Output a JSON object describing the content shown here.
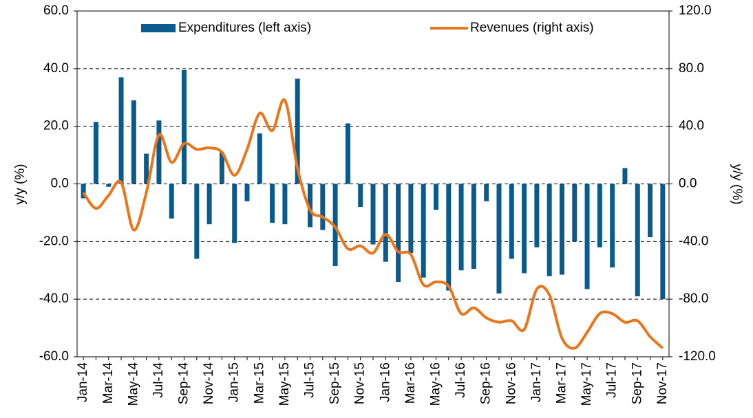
{
  "chart_data": {
    "type": "bar-line",
    "categories": [
      "Jan-14",
      null,
      "Mar-14",
      null,
      "May-14",
      null,
      "Jul-14",
      null,
      "Sep-14",
      null,
      "Nov-14",
      null,
      "Jan-15",
      null,
      "Mar-15",
      null,
      "May-15",
      null,
      "Jul-15",
      null,
      "Sep-15",
      null,
      "Nov-15",
      null,
      "Jan-16",
      null,
      "Mar-16",
      null,
      "May-16",
      null,
      "Jul-16",
      null,
      "Sep-16",
      null,
      "Nov-16",
      null,
      "Jan-17",
      null,
      "Mar-17",
      null,
      "May-17",
      null,
      "Jul-17",
      null,
      "Sep-17",
      null,
      "Nov-17"
    ],
    "series": [
      {
        "name": "Expenditures (left axis)",
        "color": "#0b5a8c",
        "kind": "bar",
        "axis": "y",
        "values": [
          -5,
          21.5,
          -1,
          37,
          29,
          10.5,
          22,
          -12,
          39.5,
          -26,
          -14,
          11,
          -20.5,
          -6,
          17.5,
          -13.5,
          -14,
          36.5,
          -15,
          -16,
          -28.5,
          21,
          -8,
          -21,
          -27,
          -34,
          -24,
          -32.5,
          -9,
          -37,
          -30,
          -29.5,
          -6,
          -38,
          -26,
          -31,
          -22,
          -32,
          -31.5,
          -20,
          -36.5,
          -22,
          -29,
          5.5,
          -39,
          -18.5,
          -40
        ]
      },
      {
        "name": "Revenues (right axis)",
        "color": "#e8761c",
        "kind": "line",
        "axis": "y2",
        "values": [
          -6,
          -17,
          -8,
          1,
          -32,
          -6,
          34,
          15,
          28,
          24,
          25,
          22,
          6,
          24,
          49,
          37,
          58,
          11,
          -18,
          -23,
          -30,
          -45,
          -43,
          -48,
          -35,
          -47,
          -49,
          -70,
          -68,
          -71,
          -90,
          -86,
          -93,
          -96,
          -95,
          -101,
          -73,
          -77,
          -107,
          -114,
          -103,
          -90,
          -90,
          -96,
          -95,
          -106,
          -114
        ]
      }
    ],
    "ylabel": "y/y (%)",
    "y2label": "y/y (%)",
    "ylim": [
      -60,
      60
    ],
    "yticks": [
      {
        "value": -60,
        "label": "-60.0"
      },
      {
        "value": -40,
        "label": "-40.0"
      },
      {
        "value": -20,
        "label": "-20.0"
      },
      {
        "value": 0,
        "label": "0.0"
      },
      {
        "value": 20,
        "label": "20.0"
      },
      {
        "value": 40,
        "label": "40.0"
      },
      {
        "value": 60,
        "label": "60.0"
      }
    ],
    "y2lim": [
      -120,
      120
    ],
    "y2ticks": [
      {
        "value": -120,
        "label": "-120.0"
      },
      {
        "value": -80,
        "label": "-80.0"
      },
      {
        "value": -40,
        "label": "-40.0"
      },
      {
        "value": 0,
        "label": "0.0"
      },
      {
        "value": 40,
        "label": "40.0"
      },
      {
        "value": 80,
        "label": "80.0"
      },
      {
        "value": 120,
        "label": "120.0"
      }
    ],
    "grid": true
  }
}
